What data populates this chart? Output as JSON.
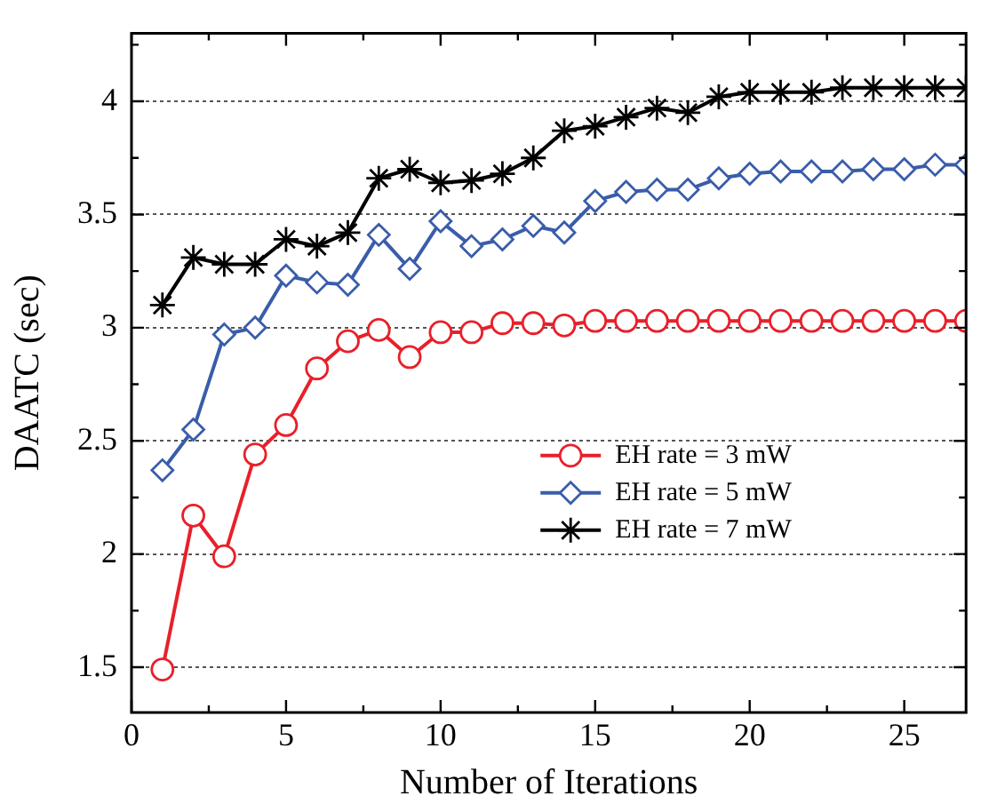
{
  "chart_data": {
    "type": "line",
    "xlabel": "Number of Iterations",
    "ylabel": "DAATC (sec)",
    "x": [
      1,
      2,
      3,
      4,
      5,
      6,
      7,
      8,
      9,
      10,
      11,
      12,
      13,
      14,
      15,
      16,
      17,
      18,
      19,
      20,
      21,
      22,
      23,
      24,
      25,
      26,
      27
    ],
    "series": [
      {
        "name": "EH rate = 3 mW",
        "color": "#e8202a",
        "marker": "circle",
        "values": [
          1.49,
          2.17,
          1.99,
          2.44,
          2.57,
          2.82,
          2.94,
          2.99,
          2.87,
          2.98,
          2.98,
          3.02,
          3.02,
          3.01,
          3.03,
          3.03,
          3.03,
          3.03,
          3.03,
          3.03,
          3.03,
          3.03,
          3.03,
          3.03,
          3.03,
          3.03,
          3.03
        ]
      },
      {
        "name": "EH rate = 5 mW",
        "color": "#3a5daa",
        "marker": "diamond",
        "values": [
          2.37,
          2.55,
          2.97,
          3.0,
          3.23,
          3.2,
          3.19,
          3.41,
          3.26,
          3.47,
          3.36,
          3.39,
          3.45,
          3.42,
          3.56,
          3.6,
          3.61,
          3.61,
          3.66,
          3.68,
          3.69,
          3.69,
          3.69,
          3.7,
          3.7,
          3.72,
          3.72
        ]
      },
      {
        "name": "EH rate = 7 mW",
        "color": "#000000",
        "marker": "cross",
        "values": [
          3.1,
          3.31,
          3.28,
          3.28,
          3.39,
          3.36,
          3.42,
          3.66,
          3.7,
          3.64,
          3.65,
          3.68,
          3.75,
          3.87,
          3.89,
          3.93,
          3.97,
          3.95,
          4.02,
          4.04,
          4.04,
          4.04,
          4.06,
          4.06,
          4.06,
          4.06,
          4.06
        ]
      }
    ],
    "xlim": [
      0,
      27
    ],
    "xticks": [
      0,
      {
        "value": 2.5,
        "label": null
      },
      5,
      {
        "value": 7.5,
        "label": null
      },
      10,
      {
        "value": 12.5,
        "label": null
      },
      15,
      {
        "value": 17.5,
        "label": null
      },
      20,
      {
        "value": 22.5,
        "label": null
      },
      25
    ],
    "ylim": [
      1.3,
      4.3
    ],
    "yticks": [
      1.5,
      {
        "value": 1.75,
        "label": null
      },
      2,
      {
        "value": 2.25,
        "label": null
      },
      2.5,
      {
        "value": 2.75,
        "label": null
      },
      3,
      {
        "value": 3.25,
        "label": null
      },
      3.5,
      {
        "value": 3.75,
        "label": null
      },
      4,
      {
        "value": 4.25,
        "label": null
      }
    ],
    "grid": "y",
    "legend": "right",
    "line_style": "solid"
  }
}
